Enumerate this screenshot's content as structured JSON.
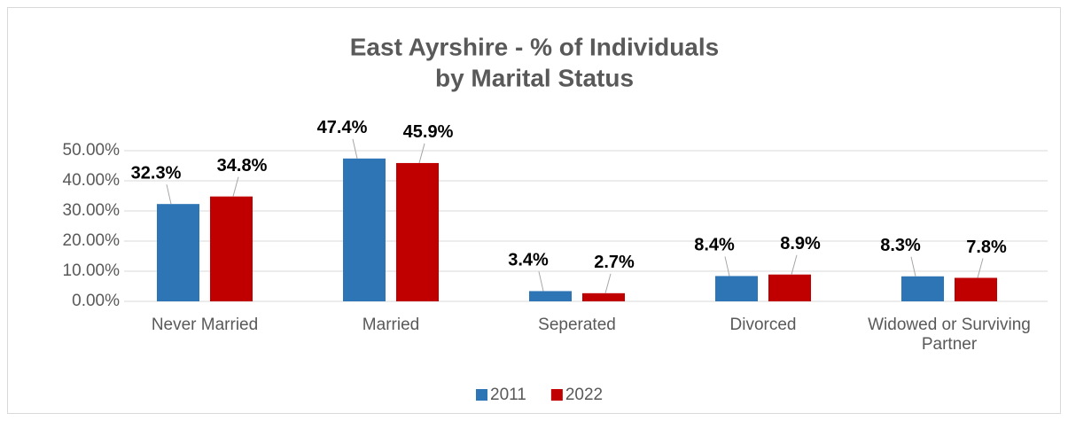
{
  "chart_data": {
    "type": "bar",
    "title": [
      "East Ayrshire - % of Individuals",
      "by Marital Status"
    ],
    "categories": [
      "Never Married",
      "Married",
      "Seperated",
      "Divorced",
      "Widowed or Surviving Partner"
    ],
    "series": [
      {
        "name": "2011",
        "color": "#2e75b6",
        "values": [
          32.3,
          47.4,
          3.4,
          8.4,
          8.3
        ],
        "value_labels": [
          "32.3%",
          "47.4%",
          "3.4%",
          "8.4%",
          "8.3%"
        ]
      },
      {
        "name": "2022",
        "color": "#c00000",
        "values": [
          34.8,
          45.9,
          2.7,
          8.9,
          7.8
        ],
        "value_labels": [
          "34.8%",
          "45.9%",
          "2.7%",
          "8.9%",
          "7.8%"
        ]
      }
    ],
    "ylim": [
      0,
      50
    ],
    "yticks": [
      {
        "value": 0,
        "label": "0.00%"
      },
      {
        "value": 10,
        "label": "10.00%"
      },
      {
        "value": 20,
        "label": "20.00%"
      },
      {
        "value": 30,
        "label": "30.00%"
      },
      {
        "value": 40,
        "label": "40.00%"
      },
      {
        "value": 50,
        "label": "50.00%"
      }
    ],
    "grid": true,
    "legend": "bottom"
  }
}
